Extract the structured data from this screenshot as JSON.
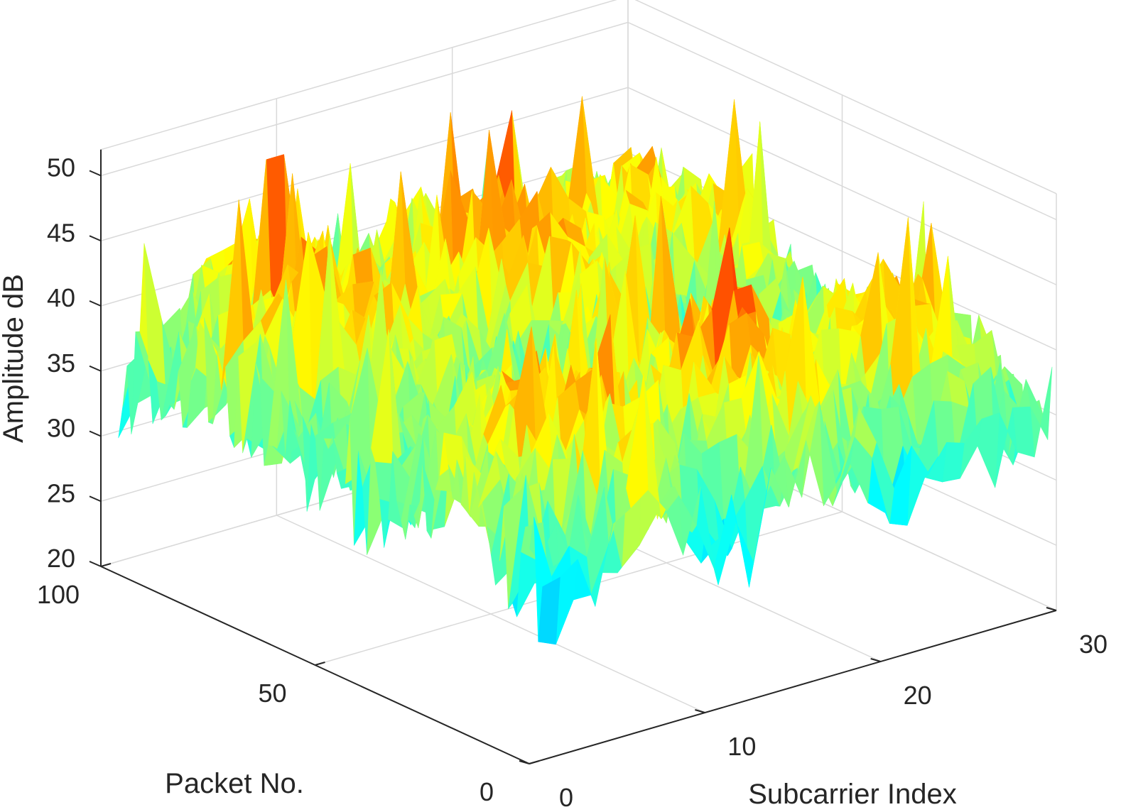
{
  "chart_data": {
    "type": "surface",
    "title": "",
    "xlabel": "Subcarrier Index",
    "ylabel": "Packet No.",
    "zlabel": "Amplitude dB",
    "xlim": [
      0,
      30
    ],
    "ylim": [
      0,
      100
    ],
    "zlim": [
      20,
      52
    ],
    "xticks": [
      "0",
      "10",
      "20",
      "30"
    ],
    "yticks": [
      "0",
      "50",
      "100"
    ],
    "zticks": [
      "20",
      "25",
      "30",
      "35",
      "40",
      "45",
      "50"
    ],
    "colormap": "jet",
    "colormap_range": [
      20,
      52
    ],
    "grid": true,
    "surface": {
      "x_count": 30,
      "y_count": 100,
      "z_min": 22,
      "z_max": 51,
      "mean_profile_by_subcarrier": [
        31,
        32,
        33,
        34,
        36,
        37,
        38,
        38,
        37,
        35,
        33,
        31,
        32,
        34,
        36,
        38,
        39,
        39,
        38,
        36,
        34,
        33,
        33,
        34,
        35,
        36,
        36,
        35,
        33,
        31
      ],
      "mean_profile_by_packet": [
        28,
        36,
        42,
        36,
        30,
        32,
        38,
        42,
        38,
        33
      ]
    }
  }
}
